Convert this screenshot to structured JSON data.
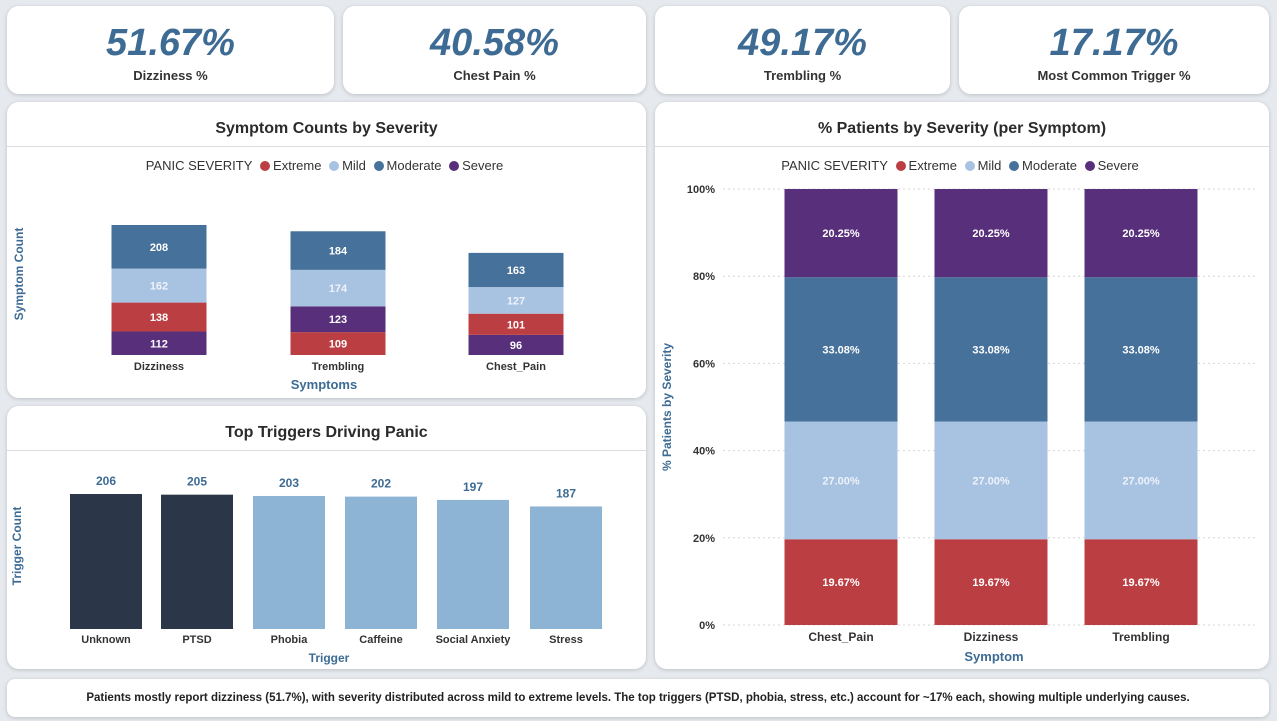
{
  "colors": {
    "accent": "#3d6b94",
    "extreme": "#bb3f42",
    "mild": "#a8c2e1",
    "moderate": "#46719a",
    "severe": "#582f7b",
    "dark_bar": "#2b3748",
    "light_bar": "#8db3d5"
  },
  "kpis": [
    {
      "value": "51.67%",
      "label": "Dizziness %"
    },
    {
      "value": "40.58%",
      "label": "Chest Pain %"
    },
    {
      "value": "49.17%",
      "label": "Trembling %"
    },
    {
      "value": "17.17%",
      "label": "Most Common Trigger %"
    }
  ],
  "legend": {
    "title": "PANIC SEVERITY",
    "items": [
      {
        "label": "Extreme",
        "color": "#bb3f42"
      },
      {
        "label": "Mild",
        "color": "#a8c2e1"
      },
      {
        "label": "Moderate",
        "color": "#46719a"
      },
      {
        "label": "Severe",
        "color": "#582f7b"
      }
    ]
  },
  "chart_data": [
    {
      "type": "bar",
      "stacked": true,
      "title": "Symptom Counts by Severity",
      "xlabel": "Symptoms",
      "ylabel": "Symptom Count",
      "categories": [
        "Dizziness",
        "Trembling",
        "Chest_Pain"
      ],
      "series": [
        {
          "name": "Severe",
          "values": [
            112,
            123,
            96
          ],
          "color": "#582f7b"
        },
        {
          "name": "Extreme",
          "values": [
            138,
            109,
            101
          ],
          "color": "#bb3f42"
        },
        {
          "name": "Mild",
          "values": [
            162,
            174,
            127
          ],
          "color": "#a8c2e1"
        },
        {
          "name": "Moderate",
          "values": [
            208,
            184,
            163
          ],
          "color": "#46719a"
        }
      ],
      "stack_order": [
        [
          "Severe",
          "Extreme",
          "Mild",
          "Moderate"
        ],
        [
          "Extreme",
          "Severe",
          "Mild",
          "Moderate"
        ],
        [
          "Severe",
          "Extreme",
          "Mild",
          "Moderate"
        ]
      ],
      "ylim": [
        0,
        650
      ],
      "grid": false
    },
    {
      "type": "bar",
      "title": "Top Triggers Driving Panic",
      "xlabel": "Trigger",
      "ylabel": "Trigger Count",
      "categories": [
        "Unknown",
        "PTSD",
        "Phobia",
        "Caffeine",
        "Social Anxiety",
        "Stress"
      ],
      "values": [
        206,
        205,
        203,
        202,
        197,
        187
      ],
      "value_labels": [
        "206",
        "205",
        "203",
        "202",
        "197",
        "187"
      ],
      "highlight": [
        true,
        true,
        false,
        false,
        false,
        false
      ],
      "ylim": [
        0,
        206
      ],
      "grid": false
    },
    {
      "type": "bar",
      "stacked": true,
      "percent": true,
      "title": "% Patients by Severity (per Symptom)",
      "xlabel": "Symptom",
      "ylabel": "% Patients by Severity",
      "categories": [
        "Chest_Pain",
        "Dizziness",
        "Trembling"
      ],
      "series": [
        {
          "name": "Extreme",
          "values": [
            19.67,
            19.67,
            19.67
          ],
          "labels": [
            "19.67%",
            "19.67%",
            "19.67%"
          ],
          "color": "#bb3f42"
        },
        {
          "name": "Mild",
          "values": [
            27.0,
            27.0,
            27.0
          ],
          "labels": [
            "27.00%",
            "27.00%",
            "27.00%"
          ],
          "color": "#a8c2e1"
        },
        {
          "name": "Moderate",
          "values": [
            33.08,
            33.08,
            33.08
          ],
          "labels": [
            "33.08%",
            "33.08%",
            "33.08%"
          ],
          "color": "#46719a"
        },
        {
          "name": "Severe",
          "values": [
            20.25,
            20.25,
            20.25
          ],
          "labels": [
            "20.25%",
            "20.25%",
            "20.25%"
          ],
          "color": "#582f7b"
        }
      ],
      "y_ticks": [
        "0%",
        "20%",
        "40%",
        "60%",
        "80%",
        "100%"
      ],
      "ylim": [
        0,
        100
      ],
      "grid": true
    }
  ],
  "footer_text": "Patients mostly report dizziness (51.7%), with severity distributed across mild to extreme levels. The top triggers (PTSD, phobia, stress, etc.) account for ~17% each, showing multiple underlying causes."
}
